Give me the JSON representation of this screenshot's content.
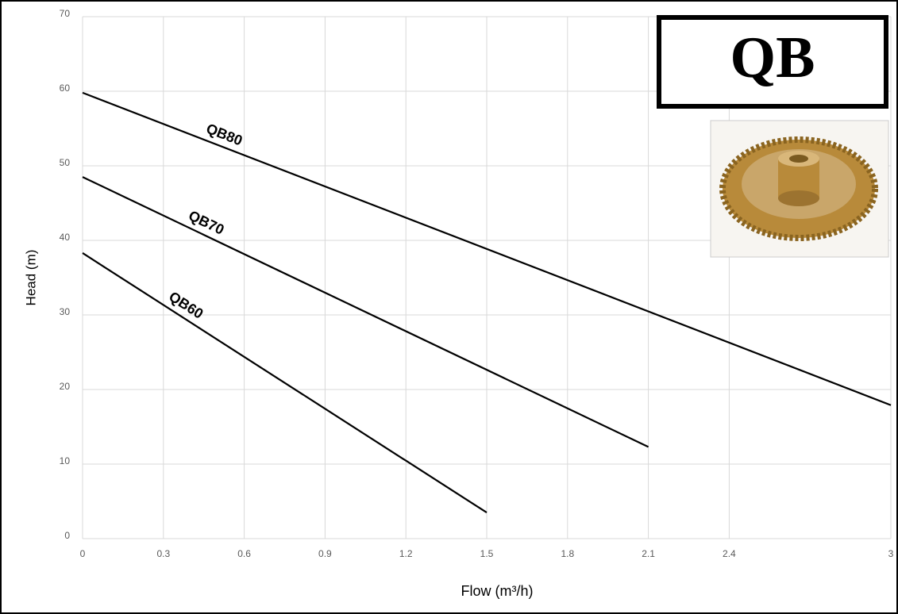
{
  "chart_data": {
    "type": "line",
    "badge": "QB",
    "x_label": "Flow (m³/h)",
    "y_label": "Head (m)",
    "series": [
      {
        "name": "QB80",
        "color": "#000000",
        "x": [
          0,
          3
        ],
        "values": [
          59.8,
          17.9
        ]
      },
      {
        "name": "QB70",
        "color": "#000000",
        "x": [
          0,
          2.1
        ],
        "values": [
          48.5,
          12.3
        ]
      },
      {
        "name": "QB60",
        "color": "#000000",
        "x": [
          0,
          1.5
        ],
        "values": [
          38.3,
          3.5
        ]
      }
    ],
    "xlim": [
      0,
      3
    ],
    "xticks": [
      0,
      0.3,
      0.6,
      0.9,
      1.2,
      1.5,
      1.8,
      2.1,
      2.4,
      3
    ],
    "ylim": [
      0,
      70
    ],
    "yticks": [
      0,
      10,
      20,
      30,
      40,
      50,
      60,
      70
    ],
    "grid": true
  }
}
